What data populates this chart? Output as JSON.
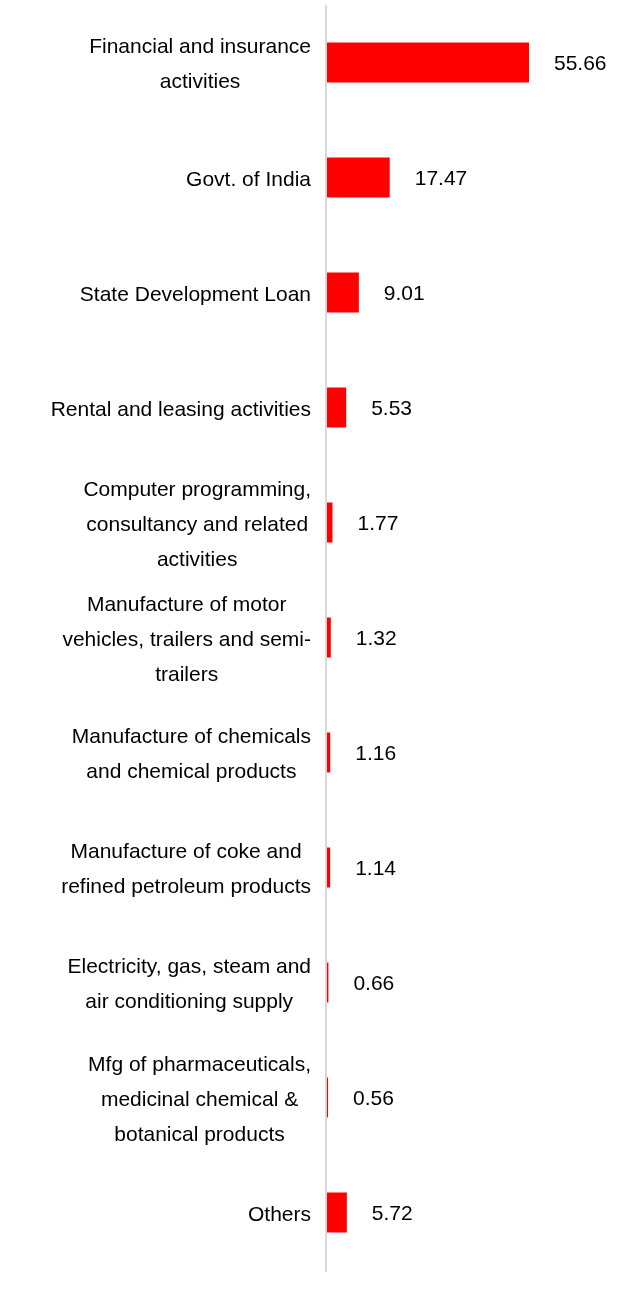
{
  "chart_data": {
    "type": "bar",
    "orientation": "horizontal",
    "categories": [
      "Financial and insurance activities",
      "Govt. of India",
      "State Development Loan",
      "Rental and leasing activities",
      "Computer programming, consultancy and related activities",
      "Manufacture of motor vehicles, trailers and semi-trailers",
      "Manufacture of chemicals and chemical products",
      "Manufacture of coke and refined petroleum products",
      "Electricity, gas, steam and air conditioning supply",
      "Mfg of pharmaceuticals, medicinal chemical & botanical products",
      "Others"
    ],
    "values": [
      55.66,
      17.47,
      9.01,
      5.53,
      1.77,
      1.32,
      1.16,
      1.14,
      0.66,
      0.56,
      5.72
    ],
    "color": "#ff0000",
    "data_labels": true,
    "tick_labels": "y"
  }
}
